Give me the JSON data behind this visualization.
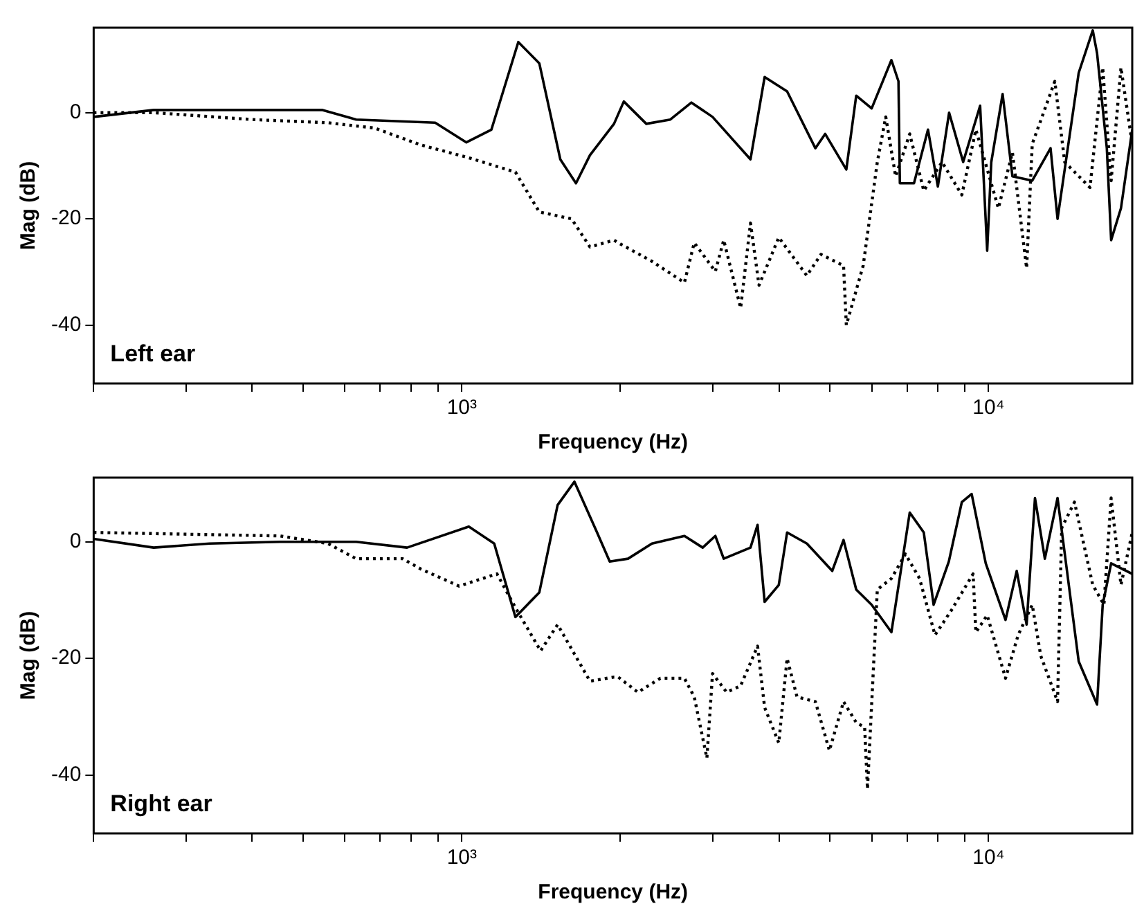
{
  "chart_data": [
    {
      "type": "line",
      "xlabel": "Frequency (Hz)",
      "ylabel": "Mag (dB)",
      "annotations": [
        "Left ear"
      ],
      "log": "x",
      "grid": false,
      "legend": false,
      "marker": "none",
      "xlim": [
        200,
        18740
      ],
      "xticks": [
        {
          "value": 200,
          "label": null
        },
        {
          "value": 300,
          "label": null
        },
        {
          "value": 400,
          "label": null
        },
        {
          "value": 500,
          "label": null
        },
        {
          "value": 600,
          "label": null
        },
        {
          "value": 700,
          "label": null
        },
        {
          "value": 800,
          "label": null
        },
        {
          "value": 900,
          "label": null
        },
        {
          "value": 1000,
          "label": "10³"
        },
        {
          "value": 2000,
          "label": null
        },
        {
          "value": 3000,
          "label": null
        },
        {
          "value": 4000,
          "label": null
        },
        {
          "value": 5000,
          "label": null
        },
        {
          "value": 6000,
          "label": null
        },
        {
          "value": 7000,
          "label": null
        },
        {
          "value": 8000,
          "label": null
        },
        {
          "value": 9000,
          "label": null
        },
        {
          "value": 10000,
          "label": "10⁴"
        }
      ],
      "ylim": [
        -51,
        16
      ],
      "yticks": [
        -40,
        -20,
        0
      ],
      "series": [
        {
          "color": "#000000",
          "line_style": "solid",
          "x": [
            200,
            260,
            332,
            544,
            630,
            890,
            1020,
            1138,
            1280,
            1403,
            1538,
            1647,
            1751,
            1945,
            2030,
            2240,
            2488,
            2728,
            2992,
            3532,
            3757,
            4145,
            4690,
            4895,
            5370,
            5607,
            5999,
            6540,
            6745,
            6786,
            7218,
            7674,
            8012,
            8416,
            8950,
            9638,
            9940,
            10120,
            10634,
            11100,
            12105,
            13113,
            13520,
            14830,
            15770,
            16070,
            16770,
            17090,
            17840,
            18740
          ],
          "values": [
            -0.8,
            0.5,
            0.5,
            0.5,
            -1.3,
            -1.9,
            -5.6,
            -3.2,
            13.3,
            9.3,
            -8.8,
            -13.3,
            -8,
            -2.1,
            2.1,
            -2.1,
            -1.3,
            1.9,
            -0.8,
            -8.8,
            6.7,
            4,
            -6.7,
            -4,
            -10.7,
            3.2,
            0.8,
            9.9,
            5.9,
            -13.3,
            -13.3,
            -3.2,
            -13.9,
            0,
            -9.3,
            1.3,
            -26,
            -9.3,
            3.5,
            -12,
            -12.8,
            -6.7,
            -20,
            7.5,
            15.5,
            11.2,
            -6.7,
            -24,
            -18,
            -3.2
          ]
        },
        {
          "color": "#000000",
          "line_style": "dotted",
          "x": [
            200,
            260,
            400,
            557,
            683,
            837,
            1031,
            1264,
            1403,
            1616,
            1751,
            1945,
            1981,
            2296,
            2646,
            2762,
            3029,
            3142,
            3383,
            3532,
            3666,
            3997,
            4519,
            4806,
            5305,
            5370,
            5781,
            6149,
            6380,
            6661,
            7085,
            7534,
            8160,
            8897,
            9461,
            10440,
            11100,
            11810,
            12105,
            13360,
            13950,
            15580,
            16470,
            17090,
            17840,
            18740
          ],
          "values": [
            0,
            0,
            -1.3,
            -1.9,
            -2.9,
            -6.1,
            -8.5,
            -11.2,
            -18.7,
            -20,
            -25.3,
            -24,
            -24.5,
            -28,
            -32,
            -24.5,
            -29.9,
            -24,
            -36.8,
            -20.8,
            -32.5,
            -23.5,
            -30.7,
            -26.7,
            -28.8,
            -40,
            -28.8,
            -9.3,
            -0.8,
            -12,
            -4,
            -14.7,
            -9.3,
            -15.5,
            -3.2,
            -18,
            -7.5,
            -29.3,
            -5.9,
            5.9,
            -9.3,
            -14.1,
            8.5,
            -12.8,
            8.5,
            -5.9
          ]
        }
      ]
    },
    {
      "type": "line",
      "xlabel": "Frequency (Hz)",
      "ylabel": "Mag (dB)",
      "annotations": [
        "Right ear"
      ],
      "log": "x",
      "grid": false,
      "legend": false,
      "marker": "none",
      "xlim": [
        200,
        18740
      ],
      "xticks": [
        {
          "value": 200,
          "label": null
        },
        {
          "value": 300,
          "label": null
        },
        {
          "value": 400,
          "label": null
        },
        {
          "value": 500,
          "label": null
        },
        {
          "value": 600,
          "label": null
        },
        {
          "value": 700,
          "label": null
        },
        {
          "value": 800,
          "label": null
        },
        {
          "value": 900,
          "label": null
        },
        {
          "value": 1000,
          "label": "10³"
        },
        {
          "value": 2000,
          "label": null
        },
        {
          "value": 3000,
          "label": null
        },
        {
          "value": 4000,
          "label": null
        },
        {
          "value": 5000,
          "label": null
        },
        {
          "value": 6000,
          "label": null
        },
        {
          "value": 7000,
          "label": null
        },
        {
          "value": 8000,
          "label": null
        },
        {
          "value": 9000,
          "label": null
        },
        {
          "value": 10000,
          "label": "10⁴"
        }
      ],
      "ylim": [
        -50,
        11
      ],
      "yticks": [
        -40,
        -20,
        0
      ],
      "series": [
        {
          "color": "#000000",
          "line_style": "solid",
          "x": [
            200,
            260,
            332,
            452,
            630,
            787,
            1031,
            1152,
            1264,
            1403,
            1520,
            1636,
            1806,
            1909,
            2068,
            2296,
            2646,
            2866,
            3029,
            3142,
            3532,
            3643,
            3757,
            3997,
            4145,
            4519,
            5049,
            5305,
            5607,
            5999,
            6540,
            7085,
            7534,
            7865,
            8405,
            8897,
            9288,
            9878,
            10770,
            11310,
            11810,
            12250,
            12790,
            13520,
            14830,
            16070,
            16470,
            17090,
            18740
          ],
          "values": [
            0.5,
            -1,
            -0.3,
            0,
            0,
            -1,
            2.6,
            -0.3,
            -12.9,
            -8.7,
            6.3,
            10.3,
            1.6,
            -3.4,
            -2.9,
            -0.3,
            1,
            -1,
            1,
            -2.9,
            -1,
            2.9,
            -10.3,
            -7.4,
            1.6,
            -0.3,
            -5,
            0.3,
            -8.2,
            -10.8,
            -15.5,
            5,
            1.6,
            -10.8,
            -3.4,
            6.8,
            8.2,
            -3.7,
            -13.4,
            -5,
            -14.2,
            7.5,
            -2.9,
            7.5,
            -20.5,
            -27.9,
            -10.8,
            -3.7,
            -5.5
          ]
        },
        {
          "color": "#000000",
          "line_style": "dotted",
          "x": [
            200,
            452,
            557,
            630,
            772,
            837,
            988,
            1166,
            1264,
            1411,
            1520,
            1751,
            1945,
            1981,
            2159,
            2382,
            2646,
            2762,
            2919,
            2992,
            3183,
            3383,
            3643,
            3757,
            3997,
            4145,
            4329,
            4690,
            4987,
            5305,
            5607,
            5818,
            5890,
            6149,
            6540,
            6953,
            7396,
            7913,
            8520,
            9346,
            9461,
            9940,
            10770,
            11380,
            12105,
            12560,
            13520,
            13770,
            14560,
            15770,
            16560,
            17090,
            17840,
            18740
          ],
          "values": [
            1.6,
            1,
            -0.3,
            -2.9,
            -2.9,
            -4.7,
            -7.6,
            -5.5,
            -11.3,
            -18.7,
            -14.2,
            -23.9,
            -23.2,
            -23.2,
            -25.8,
            -23.4,
            -23.4,
            -26.6,
            -37.1,
            -22.6,
            -25.8,
            -24.7,
            -17.9,
            -28.4,
            -34.5,
            -20,
            -26.6,
            -27.4,
            -35.8,
            -27.4,
            -31,
            -31.8,
            -42.4,
            -8.2,
            -6.3,
            -2.1,
            -6.3,
            -16,
            -11.6,
            -5.5,
            -15.5,
            -12.6,
            -23.4,
            -16,
            -10.8,
            -19.5,
            -27.4,
            2.4,
            6.8,
            -7.4,
            -10.8,
            7.5,
            -7.4,
            1.6
          ]
        }
      ]
    }
  ]
}
